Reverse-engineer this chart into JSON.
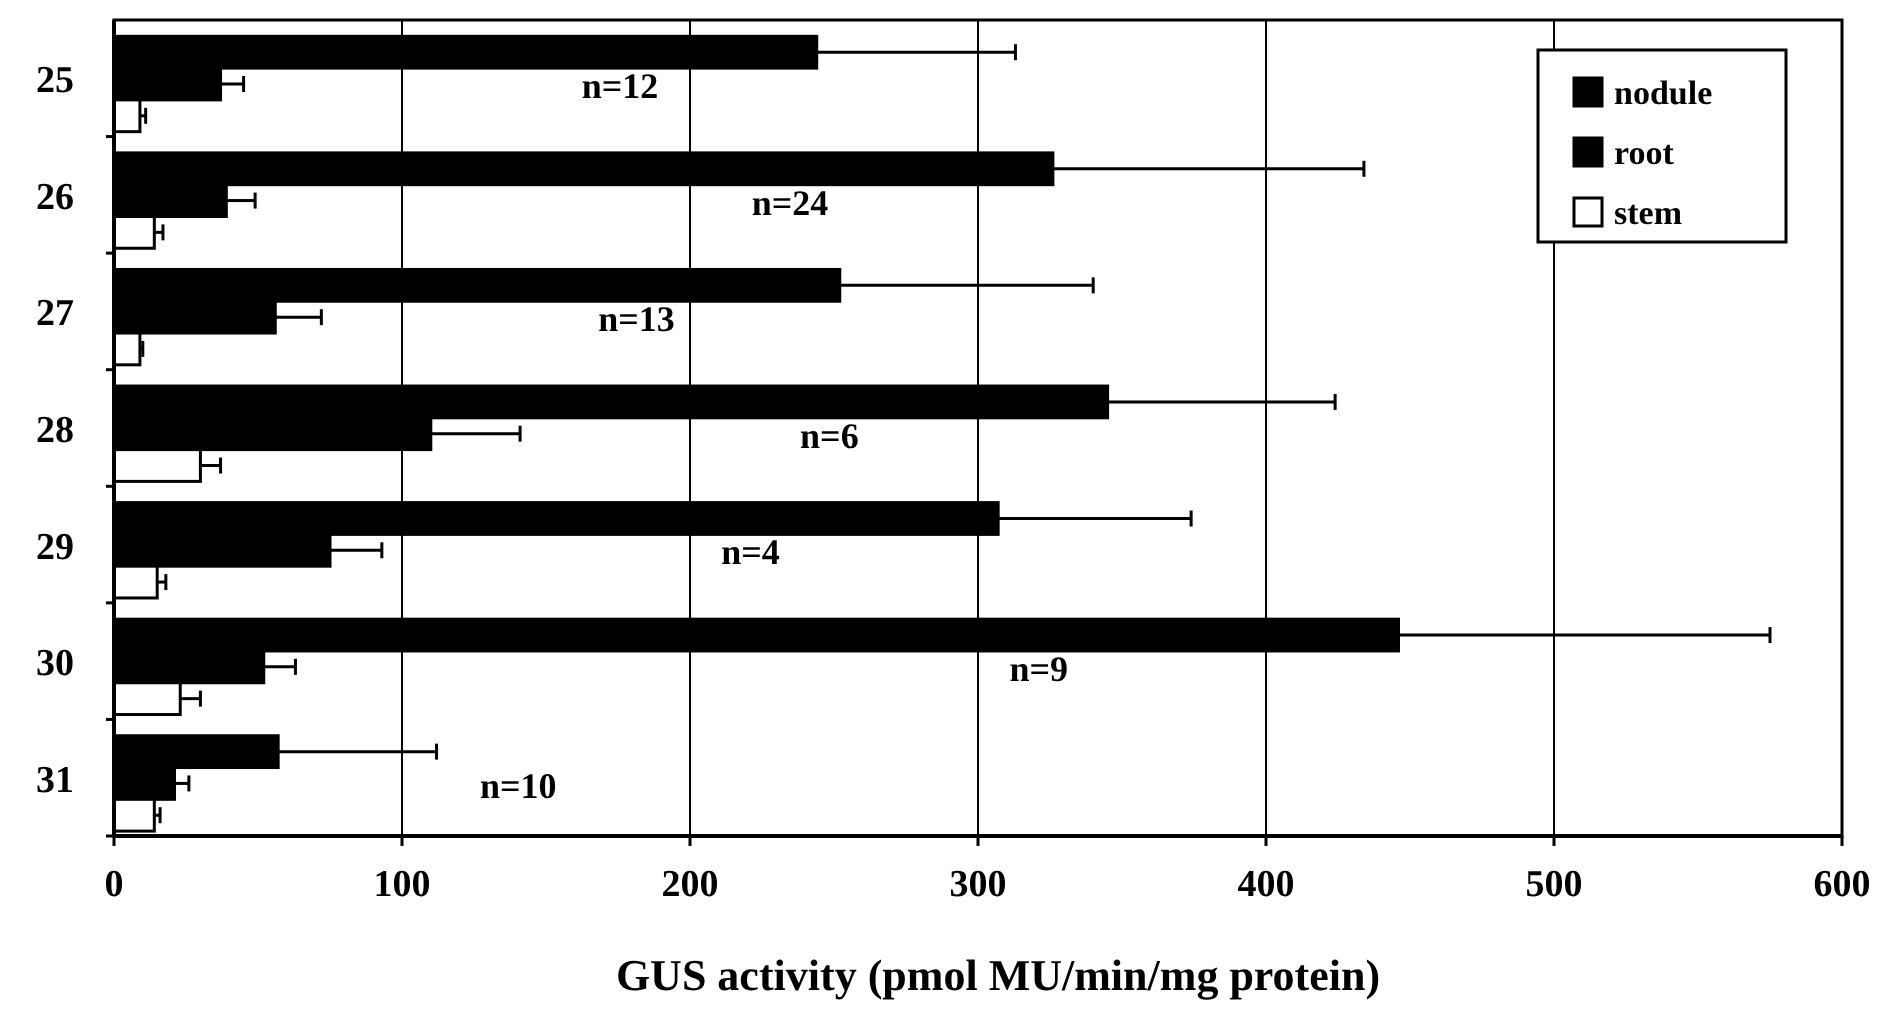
{
  "chart_data": {
    "type": "bar",
    "orientation": "horizontal",
    "xlabel": "GUS activity (pmol MU/min/mg protein)",
    "categories": [
      "25",
      "26",
      "27",
      "28",
      "29",
      "30",
      "31"
    ],
    "series": [
      {
        "name": "nodule",
        "color": "#000000",
        "values": [
          244,
          326,
          252,
          345,
          307,
          446,
          57
        ],
        "errors": [
          69,
          108,
          88,
          79,
          67,
          129,
          55
        ]
      },
      {
        "name": "root",
        "color": "#000000",
        "values": [
          37,
          39,
          56,
          110,
          75,
          52,
          21
        ],
        "errors": [
          8,
          10,
          16,
          31,
          18,
          11,
          5
        ]
      },
      {
        "name": "stem",
        "color": "#ffffff",
        "values": [
          9,
          14,
          9,
          30,
          15,
          23,
          14
        ],
        "errors": [
          2,
          3,
          1,
          7,
          3,
          7,
          2
        ]
      }
    ],
    "xlim": [
      0,
      600
    ],
    "xticks": [
      0,
      100,
      200,
      300,
      400,
      500,
      600
    ],
    "grid": "x",
    "legend": "top right",
    "annotations": [
      "n=12",
      "n=24",
      "n=13",
      "n=6",
      "n=4",
      "n=9",
      "n=10"
    ]
  }
}
